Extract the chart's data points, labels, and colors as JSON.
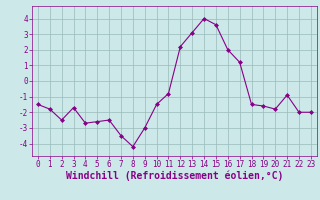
{
  "x": [
    0,
    1,
    2,
    3,
    4,
    5,
    6,
    7,
    8,
    9,
    10,
    11,
    12,
    13,
    14,
    15,
    16,
    17,
    18,
    19,
    20,
    21,
    22,
    23
  ],
  "y": [
    -1.5,
    -1.8,
    -2.5,
    -1.7,
    -2.7,
    -2.6,
    -2.5,
    -3.5,
    -4.2,
    -3.0,
    -1.5,
    -0.8,
    2.2,
    3.1,
    4.0,
    3.6,
    2.0,
    1.2,
    -1.5,
    -1.6,
    -1.8,
    -0.9,
    -2.0,
    -2.0
  ],
  "line_color": "#880088",
  "marker": "D",
  "marker_size": 2.0,
  "bg_color": "#cce8e8",
  "grid_color": "#99bbbb",
  "xlabel": "Windchill (Refroidissement éolien,°C)",
  "xlim": [
    -0.5,
    23.5
  ],
  "ylim": [
    -4.8,
    4.8
  ],
  "yticks": [
    -4,
    -3,
    -2,
    -1,
    0,
    1,
    2,
    3,
    4
  ],
  "xticks": [
    0,
    1,
    2,
    3,
    4,
    5,
    6,
    7,
    8,
    9,
    10,
    11,
    12,
    13,
    14,
    15,
    16,
    17,
    18,
    19,
    20,
    21,
    22,
    23
  ],
  "tick_fontsize": 5.5,
  "xlabel_fontsize": 7.0,
  "label_color": "#880088",
  "spine_color": "#880088"
}
